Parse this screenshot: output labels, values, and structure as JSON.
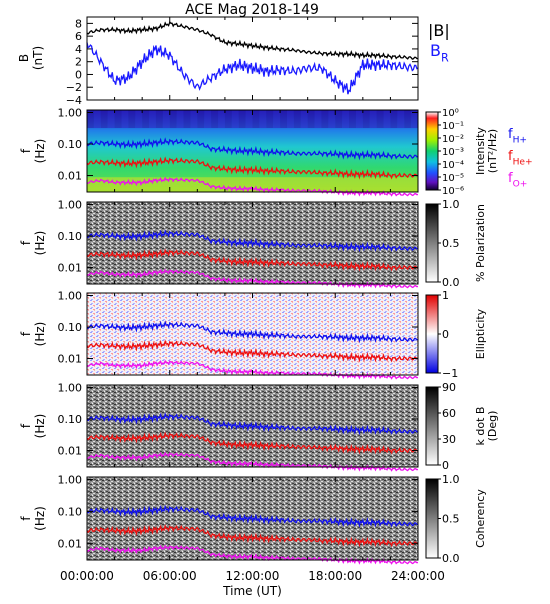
{
  "title": "ACE Mag 2018-149",
  "colors": {
    "B_total": "#000000",
    "B_R": "#1a1aff",
    "f_H": "#1010ee",
    "f_He": "#ee1010",
    "f_O": "#ee10ee"
  },
  "chart_data": [
    {
      "type": "line",
      "panel": "B",
      "ylabel": "B",
      "yunit": "(nT)",
      "ylim": [
        -4,
        9
      ],
      "yticks": [
        "8",
        "6",
        "4",
        "2",
        "0",
        "−2",
        "−4"
      ],
      "legend": [
        {
          "label": "|B|",
          "color": "#000000"
        },
        {
          "label": "B",
          "sub": "R",
          "color": "#1a1aff"
        }
      ],
      "x_hours": [
        0,
        1,
        2,
        3,
        4,
        5,
        6,
        7,
        8,
        9,
        10,
        11,
        12,
        13,
        14,
        15,
        16,
        17,
        18,
        19,
        20,
        21,
        22,
        23,
        24
      ],
      "series": [
        {
          "name": "|B|",
          "values": [
            6.5,
            7,
            7,
            6.8,
            7,
            7.2,
            8,
            7.5,
            7,
            6.2,
            5,
            4.8,
            4.5,
            4.2,
            4,
            3.8,
            3.5,
            3.3,
            3.2,
            3.2,
            3,
            3,
            2.8,
            2.7,
            2.5
          ]
        },
        {
          "name": "B_R",
          "values": [
            5,
            2,
            -1,
            -0.5,
            2,
            4,
            3,
            0,
            -2,
            -0.5,
            0.8,
            1.5,
            1,
            0.5,
            0.7,
            0.5,
            1,
            1,
            -1,
            -2.5,
            1.5,
            1.5,
            1.5,
            1.2,
            1
          ]
        }
      ]
    },
    {
      "type": "heatmap",
      "panel": "Intensity",
      "ylabel": "f",
      "yunit": "(Hz)",
      "yticks": [
        "1.00",
        "0.10",
        "0.01"
      ],
      "colorbar": {
        "label": "Intensity",
        "unit": "(nT²/Hz)",
        "ticks": [
          "10⁰",
          "10⁻¹",
          "10⁻²",
          "10⁻³",
          "10⁻⁴",
          "10⁻⁵",
          "10⁻⁶"
        ]
      },
      "legend": [
        {
          "label": "f",
          "sub": "H+",
          "color": "#1010ee"
        },
        {
          "label": "f",
          "sub": "He+",
          "color": "#ee1010"
        },
        {
          "label": "f",
          "sub": "O+",
          "color": "#ee10ee"
        }
      ]
    },
    {
      "type": "heatmap",
      "panel": "Polarization",
      "ylabel": "f",
      "yunit": "(Hz)",
      "yticks": [
        "1.00",
        "0.10",
        "0.01"
      ],
      "colorbar": {
        "label": "% Polarization",
        "ticks": [
          "1.0",
          "0.5",
          "0.0"
        ]
      }
    },
    {
      "type": "heatmap",
      "panel": "Ellipticity",
      "ylabel": "f",
      "yunit": "(Hz)",
      "yticks": [
        "1.00",
        "0.10",
        "0.01"
      ],
      "colorbar": {
        "label": "Ellipticity",
        "ticks": [
          "1",
          "0",
          "−1"
        ]
      }
    },
    {
      "type": "heatmap",
      "panel": "k dot B",
      "ylabel": "f",
      "yunit": "(Hz)",
      "yticks": [
        "1.00",
        "0.10",
        "0.01"
      ],
      "colorbar": {
        "label": "k dot B",
        "unit": "(Deg)",
        "ticks": [
          "90",
          "60",
          "30",
          "0"
        ]
      }
    },
    {
      "type": "heatmap",
      "panel": "Coherency",
      "ylabel": "f",
      "yunit": "(Hz)",
      "yticks": [
        "1.00",
        "0.10",
        "0.01"
      ],
      "colorbar": {
        "label": "Coherency",
        "ticks": [
          "1.0",
          "0.5",
          "0.0"
        ]
      }
    }
  ],
  "gyro_lines": {
    "x_hours": [
      0,
      1,
      2,
      3,
      4,
      5,
      6,
      7,
      8,
      9,
      10,
      11,
      12,
      13,
      14,
      15,
      16,
      17,
      18,
      19,
      20,
      21,
      22,
      23,
      24
    ],
    "f_H": [
      0.1,
      0.11,
      0.1,
      0.095,
      0.1,
      0.11,
      0.12,
      0.115,
      0.11,
      0.07,
      0.065,
      0.06,
      0.06,
      0.055,
      0.055,
      0.05,
      0.05,
      0.05,
      0.048,
      0.045,
      0.045,
      0.045,
      0.042,
      0.04,
      0.04
    ],
    "f_He": [
      0.025,
      0.027,
      0.025,
      0.024,
      0.025,
      0.027,
      0.03,
      0.029,
      0.028,
      0.018,
      0.016,
      0.015,
      0.015,
      0.014,
      0.014,
      0.013,
      0.013,
      0.012,
      0.012,
      0.011,
      0.011,
      0.011,
      0.01,
      0.01,
      0.01
    ],
    "f_O": [
      0.006,
      0.007,
      0.006,
      0.006,
      0.006,
      0.007,
      0.0075,
      0.0072,
      0.007,
      0.0045,
      0.004,
      0.0038,
      0.0038,
      0.0035,
      0.0035,
      0.0033,
      0.0033,
      0.0032,
      0.003,
      0.0028,
      0.0028,
      0.0028,
      0.0026,
      0.0025,
      0.0025
    ]
  },
  "xaxis": {
    "ticks": [
      "00:00:00",
      "06:00:00",
      "12:00:00",
      "18:00:00",
      "24:00:00"
    ],
    "label": "Time (UT)"
  }
}
